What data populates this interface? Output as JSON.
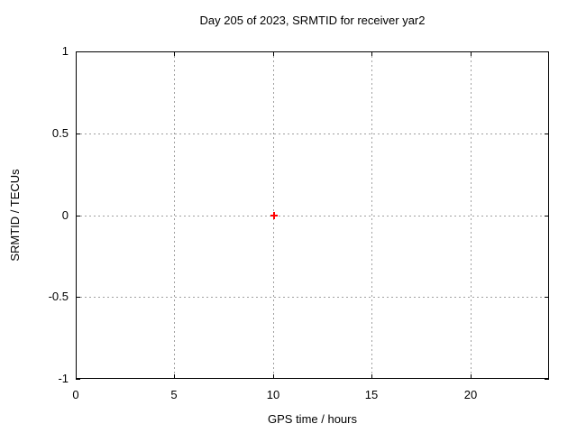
{
  "chart_data": {
    "type": "scatter",
    "title": "Day 205 of 2023, SRMTID for receiver yar2",
    "xlabel": "GPS time / hours",
    "ylabel": "SRMTID / TECUs",
    "xlim": [
      0,
      24
    ],
    "ylim": [
      -1,
      1
    ],
    "x_tick_values": [
      0,
      5,
      10,
      15,
      20
    ],
    "x_tick_labels": [
      "0",
      "5",
      "10",
      "15",
      "20"
    ],
    "y_tick_values": [
      -1,
      -0.5,
      0,
      0.5,
      1
    ],
    "y_tick_labels": [
      "-1",
      "-0.5",
      "0",
      "0.5",
      "1"
    ],
    "grid": true,
    "grid_style": "dotted",
    "legend": "none",
    "series": [
      {
        "marker": "plus",
        "color": "#ff0000",
        "points": [
          {
            "x": 10.05,
            "y": 0.0
          }
        ]
      }
    ],
    "colors": {
      "background": "#ffffff",
      "border": "#000000",
      "grid": "#a0a0a0",
      "text": "#000000",
      "marker": "#ff0000"
    }
  }
}
